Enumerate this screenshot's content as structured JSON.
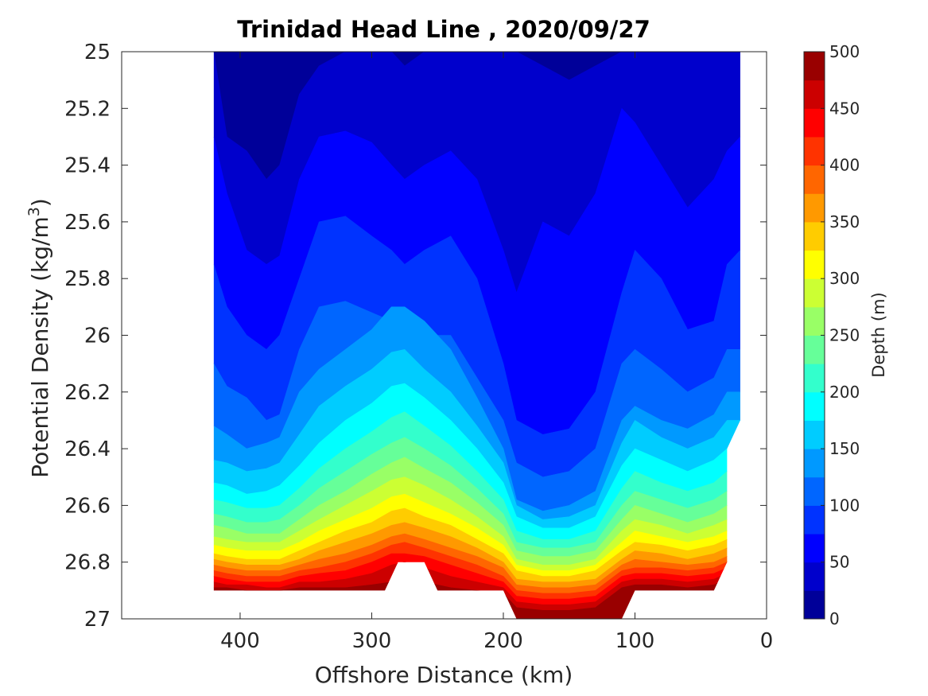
{
  "chart_data": {
    "type": "contour",
    "title": "Trinidad Head Line , 2020/09/27",
    "xlabel": "Offshore Distance (km)",
    "ylabel_main": "Potential Density (kg/m",
    "ylabel_sup": "3",
    "ylabel_end": ")",
    "x_reversed": true,
    "xlim": [
      0,
      490
    ],
    "ylim": [
      25,
      27
    ],
    "y_reversed": true,
    "xticks": [
      "400",
      "300",
      "200",
      "100",
      "0"
    ],
    "xtick_values": [
      400,
      300,
      200,
      100,
      0
    ],
    "yticks": [
      "25",
      "25.2",
      "25.4",
      "25.6",
      "25.8",
      "26",
      "26.2",
      "26.4",
      "26.6",
      "26.8",
      "27"
    ],
    "ytick_values": [
      25,
      25.2,
      25.4,
      25.6,
      25.8,
      26,
      26.2,
      26.4,
      26.6,
      26.8,
      27
    ],
    "colorbar": {
      "label": "Depth (m)",
      "range": [
        0,
        500
      ],
      "step": 25,
      "ticks": [
        "0",
        "50",
        "100",
        "150",
        "200",
        "250",
        "300",
        "350",
        "400",
        "450",
        "500"
      ],
      "tick_values": [
        0,
        50,
        100,
        150,
        200,
        250,
        300,
        350,
        400,
        450,
        500
      ],
      "colormap": "jet"
    },
    "data_x": [
      420,
      410,
      395,
      380,
      370,
      355,
      340,
      320,
      300,
      285,
      275,
      260,
      240,
      220,
      200,
      190,
      170,
      150,
      130,
      110,
      100,
      80,
      60,
      40,
      30,
      20
    ],
    "isopycnal_depth_levels": [
      {
        "depth": 25,
        "sigma": [
          25.0,
          25.3,
          25.35,
          25.45,
          25.4,
          25.15,
          25.05,
          25.0,
          25.0,
          25.0,
          25.05,
          25.0,
          25.0,
          25.0,
          25.0,
          25.0,
          25.05,
          25.1,
          25.05,
          25.0,
          25.0,
          25.0,
          25.0,
          25.0,
          25.0,
          25.0
        ]
      },
      {
        "depth": 50,
        "sigma": [
          25.3,
          25.5,
          25.7,
          25.75,
          25.72,
          25.45,
          25.3,
          25.28,
          25.32,
          25.4,
          25.45,
          25.4,
          25.35,
          25.45,
          25.7,
          25.85,
          25.6,
          25.65,
          25.5,
          25.2,
          25.25,
          25.4,
          25.55,
          25.45,
          25.35,
          25.3
        ]
      },
      {
        "depth": 75,
        "sigma": [
          25.75,
          25.9,
          26.0,
          26.05,
          26.0,
          25.8,
          25.6,
          25.58,
          25.65,
          25.7,
          25.75,
          25.7,
          25.65,
          25.8,
          26.1,
          26.3,
          26.35,
          26.33,
          26.2,
          25.85,
          25.7,
          25.8,
          25.98,
          25.95,
          25.75,
          25.7
        ]
      },
      {
        "depth": 100,
        "sigma": [
          26.1,
          26.18,
          26.22,
          26.3,
          26.28,
          26.05,
          25.9,
          25.88,
          25.92,
          25.95,
          25.98,
          26.0,
          26.0,
          26.15,
          26.3,
          26.45,
          26.5,
          26.48,
          26.4,
          26.1,
          26.05,
          26.12,
          26.2,
          26.15,
          26.05,
          26.05
        ]
      },
      {
        "depth": 125,
        "sigma": [
          26.32,
          26.35,
          26.4,
          26.38,
          26.36,
          26.2,
          26.12,
          26.05,
          25.98,
          25.9,
          25.9,
          25.95,
          26.05,
          26.22,
          26.4,
          26.58,
          26.62,
          26.6,
          26.55,
          26.3,
          26.25,
          26.3,
          26.33,
          26.28,
          26.2,
          26.2
        ]
      },
      {
        "depth": 150,
        "sigma": [
          26.44,
          26.45,
          26.48,
          26.47,
          26.45,
          26.35,
          26.25,
          26.18,
          26.12,
          26.06,
          26.05,
          26.12,
          26.2,
          26.32,
          26.45,
          26.6,
          26.65,
          26.64,
          26.6,
          26.38,
          26.3,
          26.36,
          26.4,
          26.36,
          26.3,
          26.3
        ]
      },
      {
        "depth": 175,
        "sigma": [
          26.52,
          26.53,
          26.56,
          26.55,
          26.53,
          26.46,
          26.38,
          26.3,
          26.24,
          26.18,
          26.17,
          26.22,
          26.3,
          26.4,
          26.52,
          26.64,
          26.68,
          26.68,
          26.64,
          26.46,
          26.4,
          26.44,
          26.48,
          26.44,
          26.4,
          26.4
        ]
      },
      {
        "depth": 200,
        "sigma": [
          26.58,
          26.59,
          26.61,
          26.61,
          26.6,
          26.54,
          26.47,
          26.4,
          26.34,
          26.29,
          26.27,
          26.32,
          26.39,
          26.48,
          26.58,
          26.69,
          26.72,
          26.72,
          26.69,
          26.54,
          26.48,
          26.52,
          26.55,
          26.52,
          26.48,
          26.48
        ]
      },
      {
        "depth": 225,
        "sigma": [
          26.63,
          26.64,
          26.66,
          26.66,
          26.65,
          26.6,
          26.54,
          26.48,
          26.42,
          26.38,
          26.36,
          26.4,
          26.46,
          26.54,
          26.63,
          26.73,
          26.75,
          26.75,
          26.73,
          26.6,
          26.55,
          26.58,
          26.61,
          26.58,
          26.55,
          26.55
        ]
      },
      {
        "depth": 250,
        "sigma": [
          26.67,
          26.68,
          26.7,
          26.7,
          26.7,
          26.65,
          26.6,
          26.55,
          26.49,
          26.45,
          26.43,
          26.47,
          26.52,
          26.59,
          26.67,
          26.76,
          26.78,
          26.78,
          26.76,
          26.65,
          26.6,
          26.63,
          26.66,
          26.63,
          26.6,
          26.6
        ]
      },
      {
        "depth": 275,
        "sigma": [
          26.71,
          26.72,
          26.73,
          26.73,
          26.73,
          26.69,
          26.65,
          26.6,
          26.55,
          26.51,
          26.5,
          26.53,
          26.58,
          26.64,
          26.71,
          26.79,
          26.81,
          26.81,
          26.79,
          26.69,
          26.65,
          26.67,
          26.7,
          26.67,
          26.65,
          26.65
        ]
      },
      {
        "depth": 300,
        "sigma": [
          26.74,
          26.75,
          26.76,
          26.76,
          26.76,
          26.73,
          26.69,
          26.65,
          26.61,
          26.57,
          26.56,
          26.59,
          26.63,
          26.68,
          26.74,
          26.81,
          26.83,
          26.83,
          26.81,
          26.73,
          26.69,
          26.71,
          26.73,
          26.71,
          26.69,
          26.69
        ]
      },
      {
        "depth": 325,
        "sigma": [
          26.77,
          26.78,
          26.79,
          26.79,
          26.79,
          26.76,
          26.73,
          26.69,
          26.66,
          26.62,
          26.61,
          26.64,
          26.67,
          26.72,
          26.77,
          26.83,
          26.85,
          26.85,
          26.83,
          26.76,
          26.73,
          26.74,
          26.76,
          26.74,
          26.72,
          26.72
        ]
      },
      {
        "depth": 350,
        "sigma": [
          26.79,
          26.8,
          26.81,
          26.81,
          26.81,
          26.79,
          26.76,
          26.73,
          26.7,
          26.67,
          26.66,
          26.68,
          26.71,
          26.75,
          26.8,
          26.86,
          26.87,
          26.87,
          26.86,
          26.79,
          26.76,
          26.77,
          26.79,
          26.77,
          26.75,
          26.75
        ]
      },
      {
        "depth": 375,
        "sigma": [
          26.81,
          26.82,
          26.83,
          26.83,
          26.83,
          26.81,
          26.79,
          26.77,
          26.74,
          26.71,
          26.7,
          26.72,
          26.75,
          26.78,
          26.82,
          26.88,
          26.89,
          26.89,
          26.88,
          26.81,
          26.79,
          26.8,
          26.81,
          26.8,
          26.78,
          26.78
        ]
      },
      {
        "depth": 400,
        "sigma": [
          26.83,
          26.84,
          26.85,
          26.85,
          26.85,
          26.83,
          26.82,
          26.8,
          26.77,
          26.74,
          26.73,
          26.75,
          26.78,
          26.81,
          26.85,
          26.9,
          26.91,
          26.91,
          26.9,
          26.83,
          26.82,
          26.82,
          26.83,
          26.82,
          26.8,
          26.8
        ]
      },
      {
        "depth": 425,
        "sigma": [
          26.85,
          26.86,
          26.87,
          26.87,
          26.87,
          26.85,
          26.84,
          26.83,
          26.8,
          26.77,
          26.77,
          26.78,
          26.81,
          26.84,
          26.87,
          26.92,
          26.93,
          26.93,
          26.92,
          26.85,
          26.84,
          26.84,
          26.85,
          26.84,
          26.82,
          26.82
        ]
      },
      {
        "depth": 450,
        "sigma": [
          26.87,
          26.88,
          26.88,
          26.89,
          26.89,
          26.87,
          26.87,
          26.86,
          26.84,
          26.81,
          26.8,
          26.82,
          26.85,
          26.87,
          26.89,
          26.94,
          26.95,
          26.95,
          26.94,
          26.87,
          26.86,
          26.86,
          26.87,
          26.86,
          26.84,
          26.84
        ]
      },
      {
        "depth": 475,
        "sigma": [
          26.89,
          26.89,
          26.9,
          26.9,
          26.9,
          26.89,
          26.89,
          26.89,
          26.88,
          26.87,
          26.86,
          26.87,
          26.89,
          26.9,
          26.91,
          26.96,
          26.97,
          26.97,
          26.96,
          26.89,
          26.88,
          26.88,
          26.89,
          26.88,
          26.86,
          26.86
        ]
      }
    ],
    "data_mask_top_sigma": 25,
    "data_mask_bottom": [
      {
        "x": 420,
        "sigma": 26.9
      },
      {
        "x": 290,
        "sigma": 26.9
      },
      {
        "x": 280,
        "sigma": 26.8
      },
      {
        "x": 260,
        "sigma": 26.8
      },
      {
        "x": 250,
        "sigma": 26.9
      },
      {
        "x": 200,
        "sigma": 26.9
      },
      {
        "x": 190,
        "sigma": 27.0
      },
      {
        "x": 110,
        "sigma": 27.0
      },
      {
        "x": 100,
        "sigma": 26.9
      },
      {
        "x": 40,
        "sigma": 26.9
      },
      {
        "x": 30,
        "sigma": 26.8
      },
      {
        "x": 30,
        "sigma": 26.4
      },
      {
        "x": 20,
        "sigma": 26.3
      },
      {
        "x": 20,
        "sigma": 25.0
      }
    ]
  }
}
